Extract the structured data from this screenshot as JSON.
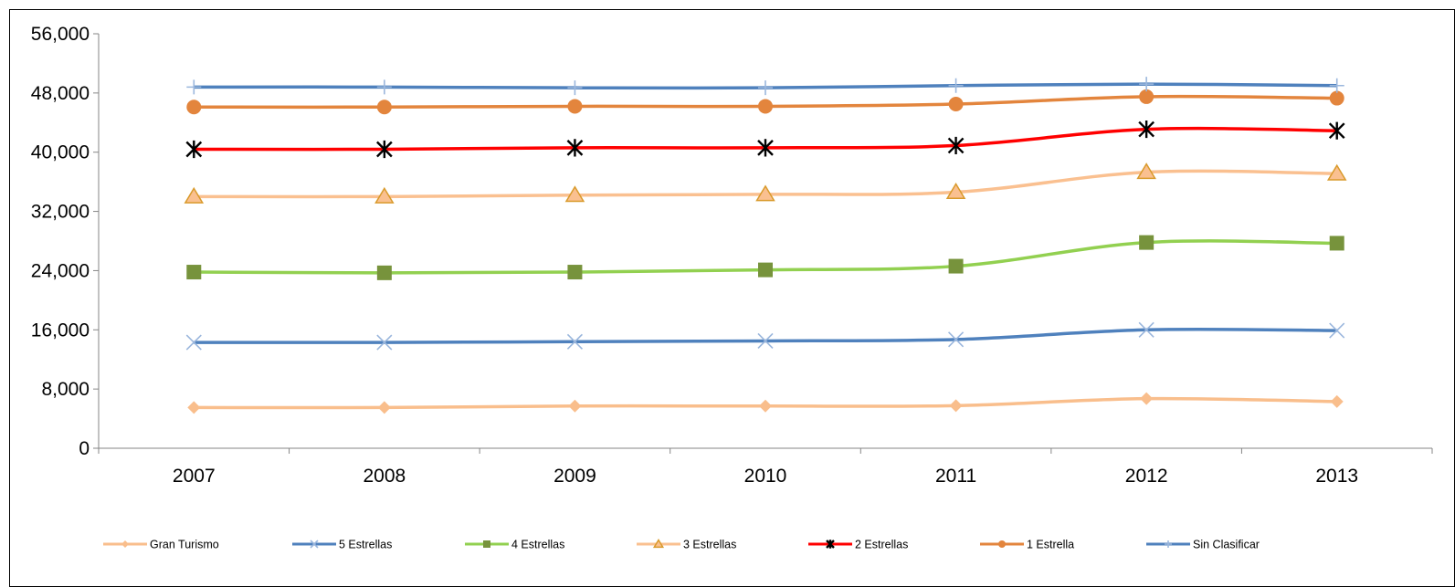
{
  "chart_data": {
    "type": "line",
    "title": "",
    "xlabel": "",
    "ylabel": "",
    "categories": [
      "2007",
      "2008",
      "2009",
      "2010",
      "2011",
      "2012",
      "2013"
    ],
    "ylim": [
      0,
      56000
    ],
    "yticks": [
      0,
      8000,
      16000,
      24000,
      32000,
      40000,
      48000,
      56000
    ],
    "ytick_labels": [
      "0",
      "8,000",
      "16,000",
      "24,000",
      "32,000",
      "40,000",
      "48,000",
      "56,000"
    ],
    "grid": false,
    "smooth": true,
    "legend_position": "bottom",
    "series": [
      {
        "name": "Gran Turismo",
        "color": "#F9BE8C",
        "marker": "diamond",
        "values": [
          5500,
          5500,
          5700,
          5700,
          5750,
          6700,
          6300
        ]
      },
      {
        "name": "5 Estrellas",
        "color": "#4F81BD",
        "marker": "x",
        "values": [
          14300,
          14300,
          14400,
          14500,
          14700,
          16000,
          15900
        ]
      },
      {
        "name": "4 Estrellas",
        "color": "#92D050",
        "marker": "square",
        "values": [
          23800,
          23700,
          23800,
          24100,
          24600,
          27800,
          27700
        ]
      },
      {
        "name": "3 Estrellas",
        "color": "#FAC090",
        "marker": "triangle",
        "values": [
          34000,
          34000,
          34200,
          34300,
          34600,
          37300,
          37100
        ]
      },
      {
        "name": "2 Estrellas",
        "color": "#FF0000",
        "marker": "star",
        "values": [
          40400,
          40400,
          40600,
          40600,
          40900,
          43100,
          42900
        ]
      },
      {
        "name": "1 Estrella",
        "color": "#E3853D",
        "marker": "circle",
        "values": [
          46100,
          46100,
          46200,
          46200,
          46500,
          47500,
          47300
        ]
      },
      {
        "name": "Sin Clasificar",
        "color": "#4F81BD",
        "marker": "plus",
        "values": [
          48800,
          48800,
          48700,
          48700,
          49000,
          49200,
          49000
        ]
      }
    ]
  }
}
